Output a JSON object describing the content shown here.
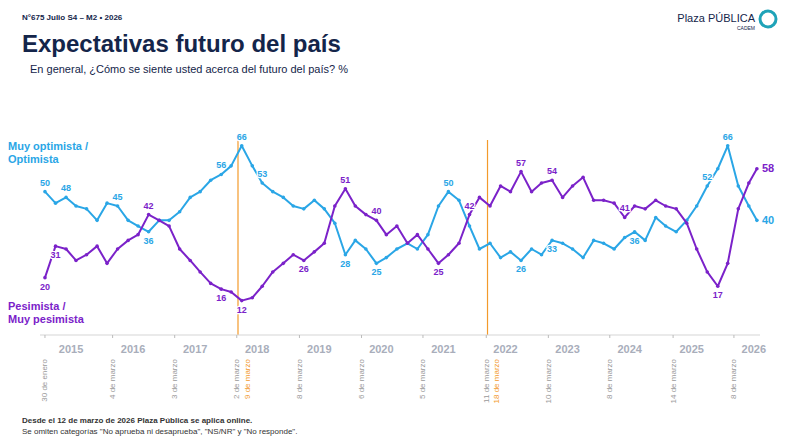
{
  "header": {
    "issue": "N°675 Julio S4 – M2 • 2026",
    "brand": "Plaza PÚBLICA",
    "brand_sub": "CADEM"
  },
  "chart_data": {
    "type": "line",
    "title": "Expectativas futuro del país",
    "subtitle": "En general, ¿Cómo se siente usted acerca del futuro del país? %",
    "x": [
      2015.08,
      2015.25,
      2015.42,
      2015.58,
      2015.75,
      2015.92,
      2016.08,
      2016.25,
      2016.42,
      2016.58,
      2016.75,
      2016.92,
      2017.08,
      2017.25,
      2017.42,
      2017.58,
      2017.75,
      2017.92,
      2018.08,
      2018.25,
      2018.42,
      2018.58,
      2018.75,
      2018.92,
      2019.08,
      2019.25,
      2019.42,
      2019.58,
      2019.75,
      2019.92,
      2020.08,
      2020.25,
      2020.42,
      2020.58,
      2020.75,
      2020.92,
      2021.08,
      2021.25,
      2021.42,
      2021.58,
      2021.75,
      2021.92,
      2022.08,
      2022.25,
      2022.42,
      2022.58,
      2022.75,
      2022.92,
      2023.08,
      2023.25,
      2023.42,
      2023.58,
      2023.75,
      2023.92,
      2024.08,
      2024.25,
      2024.42,
      2024.58,
      2024.75,
      2024.92,
      2025.08,
      2025.25,
      2025.42,
      2025.58,
      2025.75,
      2025.92,
      2026.08,
      2026.25,
      2026.42,
      2026.55
    ],
    "xlim": [
      2015.0,
      2026.6
    ],
    "xticks": [
      {
        "value": 2015.5,
        "label": "2015"
      },
      {
        "value": 2016.5,
        "label": "2016"
      },
      {
        "value": 2017.5,
        "label": "2017"
      },
      {
        "value": 2018.5,
        "label": "2018"
      },
      {
        "value": 2019.5,
        "label": "2019"
      },
      {
        "value": 2020.5,
        "label": "2020"
      },
      {
        "value": 2021.5,
        "label": "2021"
      },
      {
        "value": 2022.5,
        "label": "2022"
      },
      {
        "value": 2023.5,
        "label": "2023"
      },
      {
        "value": 2024.5,
        "label": "2024"
      },
      {
        "value": 2025.5,
        "label": "2025"
      },
      {
        "value": 2026.5,
        "label": "2026"
      }
    ],
    "date_ticks": [
      {
        "value": 2015.08,
        "label": "30 de enero"
      },
      {
        "value": 2016.17,
        "label": "4 de marzo"
      },
      {
        "value": 2017.17,
        "label": "3 de marzo"
      },
      {
        "value": 2018.17,
        "label": "2 de marzo"
      },
      {
        "value": 2019.18,
        "label": "8 de marzo"
      },
      {
        "value": 2020.18,
        "label": "6 de marzo"
      },
      {
        "value": 2021.17,
        "label": "5 de marzo"
      },
      {
        "value": 2022.19,
        "label": "11 de marzo"
      },
      {
        "value": 2023.19,
        "label": "10 de marzo"
      },
      {
        "value": 2024.18,
        "label": "8 de marzo"
      },
      {
        "value": 2025.2,
        "label": "14 de marzo"
      },
      {
        "value": 2026.18,
        "label": "8 de marzo"
      }
    ],
    "highlight_ticks": [
      {
        "value": 2018.19,
        "label": "9 de marzo"
      },
      {
        "value": 2022.21,
        "label": "18 de marzo"
      }
    ],
    "ylim": [
      0,
      75
    ],
    "yticks": [],
    "tick_labels": "x",
    "grid": false,
    "legend": "left",
    "marker": "circle",
    "data_labels": true,
    "series": [
      {
        "name": "Muy optimista / Optimista",
        "color": "#2aa6e6",
        "values": [
          50,
          46,
          48,
          45,
          44,
          40,
          46,
          45,
          40,
          38,
          36,
          40,
          40,
          43,
          48,
          50,
          54,
          56,
          59,
          66,
          59,
          53,
          50,
          48,
          45,
          44,
          47,
          44,
          39,
          28,
          33,
          30,
          25,
          27,
          30,
          32,
          30,
          35,
          45,
          50,
          47,
          38,
          30,
          32,
          27,
          29,
          26,
          30,
          28,
          33,
          32,
          30,
          27,
          33,
          32,
          30,
          34,
          36,
          33,
          41,
          38,
          36,
          40,
          45,
          52,
          58,
          66,
          52,
          45,
          40
        ],
        "value_labels": [
          "50",
          null,
          "48",
          null,
          null,
          null,
          null,
          "45",
          null,
          null,
          "36",
          null,
          null,
          null,
          null,
          null,
          null,
          "56",
          null,
          "66",
          null,
          "53",
          null,
          null,
          null,
          null,
          null,
          null,
          null,
          "28",
          null,
          null,
          "25",
          null,
          null,
          null,
          null,
          null,
          null,
          "50",
          null,
          null,
          null,
          null,
          null,
          null,
          "26",
          null,
          null,
          "33",
          null,
          null,
          null,
          null,
          null,
          null,
          null,
          "36",
          null,
          null,
          null,
          null,
          null,
          null,
          "52",
          null,
          "66",
          null,
          null,
          "40"
        ]
      },
      {
        "name": "Pesimista / Muy pesimista",
        "color": "#7b22c9",
        "values": [
          20,
          31,
          30,
          26,
          28,
          31,
          25,
          30,
          33,
          35,
          42,
          40,
          38,
          30,
          26,
          22,
          18,
          16,
          15,
          12,
          13,
          17,
          22,
          25,
          28,
          26,
          29,
          32,
          45,
          51,
          45,
          42,
          40,
          35,
          38,
          32,
          35,
          30,
          25,
          28,
          32,
          42,
          48,
          45,
          52,
          50,
          57,
          50,
          53,
          54,
          48,
          52,
          55,
          47,
          47,
          46,
          41,
          45,
          44,
          47,
          45,
          44,
          39,
          30,
          22,
          17,
          25,
          44,
          53,
          58
        ],
        "value_labels": [
          "20",
          "31",
          null,
          null,
          null,
          null,
          null,
          null,
          null,
          null,
          "42",
          null,
          null,
          null,
          null,
          null,
          null,
          "16",
          null,
          "12",
          null,
          null,
          null,
          null,
          null,
          "26",
          null,
          null,
          null,
          "51",
          null,
          null,
          "40",
          null,
          null,
          null,
          null,
          null,
          "25",
          null,
          null,
          "42",
          null,
          null,
          null,
          null,
          "57",
          null,
          null,
          "54",
          null,
          null,
          null,
          null,
          null,
          null,
          "41",
          null,
          null,
          null,
          null,
          null,
          null,
          null,
          null,
          "17",
          null,
          null,
          null,
          "58"
        ]
      }
    ]
  },
  "footnotes": [
    "Desde el 12 de marzo de 2026 Plaza Pública se aplica online.",
    "Se omiten categorías \"No aprueba ni desaprueba\", \"NS/NR\" y \"No responde\"."
  ]
}
